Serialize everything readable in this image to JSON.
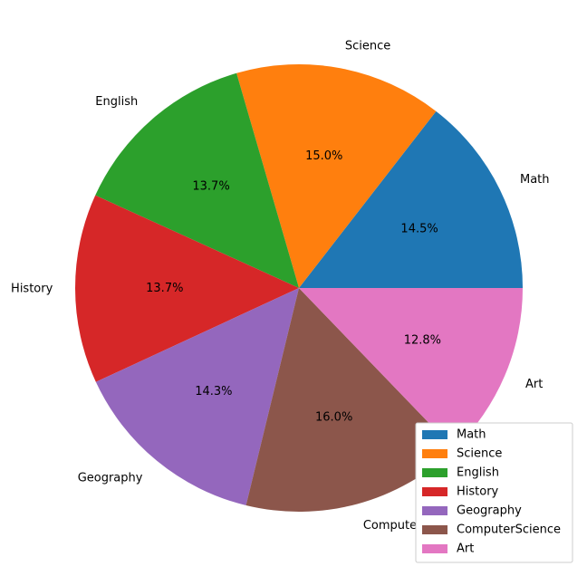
{
  "chart_data": {
    "type": "pie",
    "title": "",
    "categories": [
      "Math",
      "Science",
      "English",
      "History",
      "Geography",
      "ComputerScience",
      "Art"
    ],
    "values": [
      14.5,
      15.0,
      13.7,
      13.7,
      14.3,
      16.0,
      12.8
    ],
    "value_labels": [
      "14.5%",
      "15.0%",
      "13.7%",
      "13.7%",
      "14.3%",
      "16.0%",
      "12.8%"
    ],
    "colors": [
      "#1f77b4",
      "#ff7f0e",
      "#2ca02c",
      "#d62728",
      "#9467bd",
      "#8c564b",
      "#e377c2"
    ],
    "start_angle": 0,
    "direction": "counterclockwise",
    "legend": {
      "placement": "lower-right",
      "entries": [
        "Math",
        "Science",
        "English",
        "History",
        "Geography",
        "ComputerScience",
        "Art"
      ]
    }
  }
}
